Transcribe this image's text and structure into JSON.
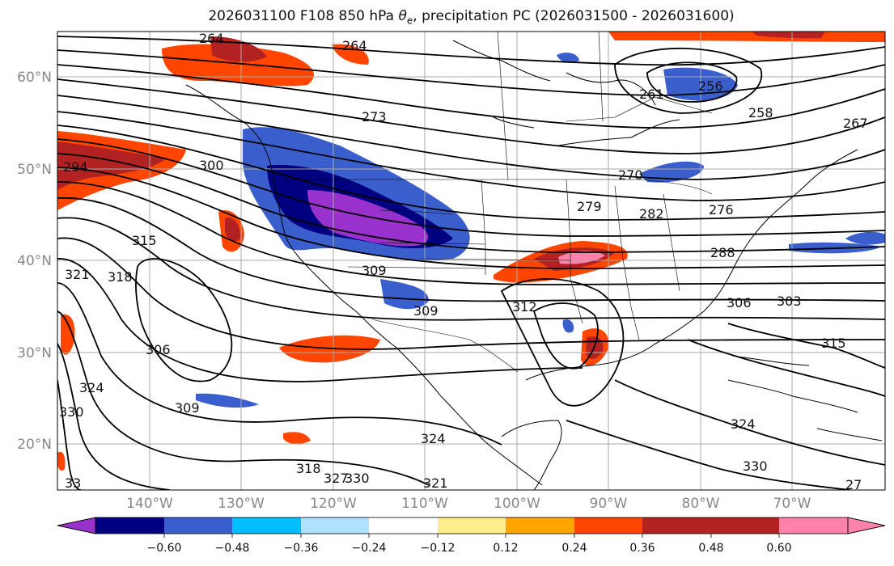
{
  "title": {
    "prefix": "2026031100 F108 850 hPa ",
    "symbol": "θ",
    "subscript": "e",
    "suffix": ", precipitation PC (2026031500 - 2026031600)"
  },
  "axes": {
    "lon_labels": [
      "140°W",
      "130°W",
      "120°W",
      "110°W",
      "100°W",
      "90°W",
      "80°W",
      "70°W"
    ],
    "lat_labels": [
      "60°N",
      "50°N",
      "40°N",
      "30°N",
      "20°N"
    ]
  },
  "contour_labels": [
    "264",
    "264",
    "273",
    "261",
    "256",
    "258",
    "267",
    "294",
    "300",
    "270",
    "279",
    "282",
    "276",
    "315",
    "288",
    "321",
    "318",
    "309",
    "309",
    "312",
    "306",
    "303",
    "315",
    "306",
    "324",
    "330",
    "309",
    "324",
    "324",
    "318",
    "327",
    "330",
    "321",
    "330",
    "33",
    "27"
  ],
  "colorbar": {
    "ticks": [
      "−0.60",
      "−0.48",
      "−0.36",
      "−0.24",
      "−0.12",
      "0.12",
      "0.24",
      "0.36",
      "0.48",
      "0.60"
    ],
    "colors": [
      "#9932cc",
      "#000080",
      "#3a5fcd",
      "#00bfff",
      "#b0e2ff",
      "#ffffff",
      "#ffec8b",
      "#ffa500",
      "#ff4500",
      "#b22222",
      "#ff82ab"
    ]
  }
}
